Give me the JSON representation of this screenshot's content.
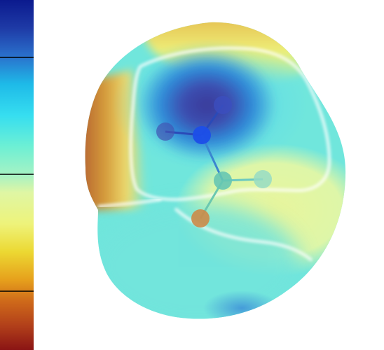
{
  "colorbar": {
    "stops": [
      "#0a1a8c",
      "#2460c8",
      "#1ec8ef",
      "#5ff0e0",
      "#a8f5c8",
      "#f0f59a",
      "#f0e040",
      "#e89818",
      "#c05018",
      "#8c1414"
    ],
    "divider_color": "#000000",
    "divider_fractions": [
      0.165,
      0.5,
      0.832
    ]
  },
  "surface": {
    "base_color": "#6fe6de",
    "highlight_colors": {
      "deep_blue": "#2a2aa0",
      "mid_blue": "#2b8ee0",
      "yellow": "#e9f37a",
      "orange": "#e08a2c",
      "red": "#b8451e"
    },
    "contour_color": "#ffffff"
  },
  "atoms": [
    {
      "element": "center",
      "color": "#1e50e6"
    },
    {
      "element": "upper-right",
      "color": "#3c4fc0"
    },
    {
      "element": "left",
      "color": "#4056b8"
    },
    {
      "element": "lower-center",
      "color": "#66c9b4"
    },
    {
      "element": "right",
      "color": "#8ed6be"
    },
    {
      "element": "bottom",
      "color": "#cc8a4a"
    }
  ]
}
